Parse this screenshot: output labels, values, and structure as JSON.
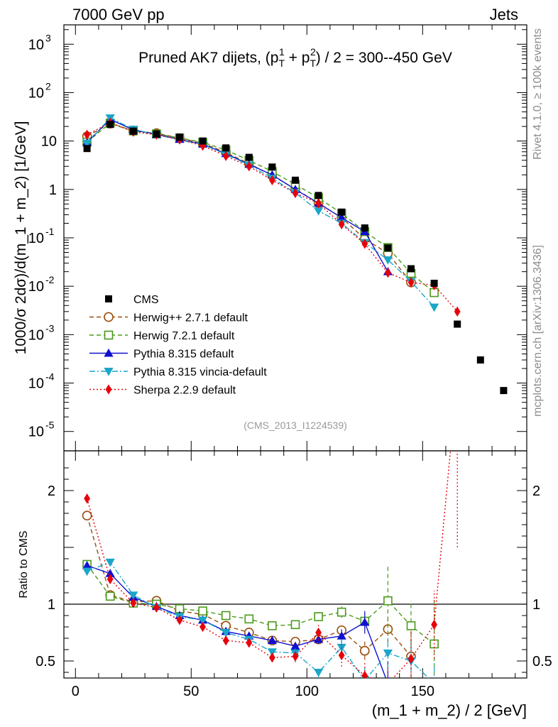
{
  "header": {
    "beam": "7000 GeV pp",
    "process": "Jets"
  },
  "side_labels": {
    "rivet": "Rivet 4.1.0, ≥ 100k events",
    "mcplots": "mcplots.cern.ch [arXiv:1306.3436]"
  },
  "chart_data": {
    "type": "scatter",
    "title": "Pruned AK7 dijets, (p_T^1 + p_T^2) / 2 = 300--450 GeV",
    "title_parts": {
      "prefix": "Pruned AK7 dijets, (p",
      "sub": "T",
      "sup1": "1",
      "sup2": "2",
      "mid": " + p",
      "suffix": ") / 2 = 300--450 GeV"
    },
    "analysis_id": "(CMS_2013_I1224539)",
    "xlabel": "(m_1 + m_2) / 2 [GeV]",
    "ylabel_top": "1000/σ   2dσ)/d(m_1 + m_2) [1/GeV]",
    "ylabel_ratio": "Ratio to CMS",
    "xlim": [
      -5,
      195
    ],
    "ylim_top_log10": [
      -5.4,
      3.4
    ],
    "ylim_ratio": [
      0.35,
      2.35
    ],
    "x_ticks": [
      0,
      50,
      100,
      150
    ],
    "y_ticks_top": [
      {
        "base": "10",
        "exp": "-5"
      },
      {
        "base": "10",
        "exp": "-4"
      },
      {
        "base": "10",
        "exp": "-3"
      },
      {
        "base": "10",
        "exp": "-2"
      },
      {
        "base": "10",
        "exp": "-1"
      },
      {
        "base": "1",
        "exp": ""
      },
      {
        "base": "10",
        "exp": ""
      },
      {
        "base": "10",
        "exp": "2"
      },
      {
        "base": "10",
        "exp": "3"
      }
    ],
    "y_ticks_ratio": [
      "0.5",
      "1",
      "2"
    ],
    "x": [
      5,
      15,
      25,
      35,
      45,
      55,
      65,
      75,
      85,
      95,
      105,
      115,
      125,
      135,
      145,
      155,
      165,
      175,
      185
    ],
    "data": {
      "name": "CMS",
      "values": [
        7.0,
        22.0,
        16.0,
        14.0,
        12.0,
        10.0,
        7.2,
        4.6,
        2.9,
        1.55,
        0.75,
        0.34,
        0.16,
        0.062,
        0.023,
        0.0115,
        0.00165,
        0.0003,
        7e-05
      ]
    },
    "series": [
      {
        "name": "Herwig++ 2.7.1 default",
        "color": "#9a4d0e",
        "marker": "circle-open",
        "dash": "6,4",
        "values": [
          12.5,
          23.0,
          16.2,
          14.5,
          11.5,
          9.0,
          5.8,
          3.4,
          1.95,
          1.02,
          0.52,
          0.26,
          0.095,
          0.048,
          0.012
        ],
        "ratio": [
          1.78,
          1.08,
          1.02,
          1.03,
          0.94,
          0.91,
          0.81,
          0.75,
          0.68,
          0.67,
          0.69,
          0.77,
          0.59,
          0.78,
          0.54
        ],
        "ratio_err": [
          0.04,
          0.02,
          0.02,
          0.02,
          0.02,
          0.02,
          0.02,
          0.02,
          0.03,
          0.03,
          0.04,
          0.06,
          0.08,
          0.12,
          0.25
        ]
      },
      {
        "name": "Herwig 7.2.1 default",
        "color": "#4a9a1a",
        "marker": "square-open",
        "dash": "6,4",
        "values": [
          9.5,
          23.5,
          16.2,
          14.0,
          11.6,
          9.4,
          6.5,
          4.0,
          2.35,
          1.27,
          0.67,
          0.32,
          0.135,
          0.063,
          0.0185,
          0.0074
        ],
        "ratio": [
          1.35,
          1.07,
          1.01,
          1.0,
          0.96,
          0.94,
          0.9,
          0.87,
          0.81,
          0.82,
          0.89,
          0.93,
          0.85,
          1.03,
          0.81,
          0.65
        ],
        "ratio_err": [
          0.03,
          0.02,
          0.02,
          0.02,
          0.02,
          0.02,
          0.02,
          0.02,
          0.03,
          0.03,
          0.04,
          0.05,
          0.07,
          0.3,
          0.22,
          0.4
        ]
      },
      {
        "name": "Pythia 8.315 default",
        "color": "#1010d0",
        "marker": "triangle-up",
        "dash": "",
        "values": [
          9.4,
          28.0,
          17.0,
          13.7,
          10.8,
          8.6,
          5.5,
          3.3,
          2.0,
          1.0,
          0.52,
          0.26,
          0.135,
          0.02
        ],
        "ratio": [
          1.34,
          1.27,
          1.06,
          0.98,
          0.9,
          0.86,
          0.76,
          0.72,
          0.68,
          0.63,
          0.69,
          0.72,
          0.84,
          0.3
        ],
        "ratio_err": [
          0.03,
          0.02,
          0.02,
          0.02,
          0.02,
          0.02,
          0.02,
          0.02,
          0.03,
          0.03,
          0.04,
          0.06,
          0.1,
          0.2
        ]
      },
      {
        "name": "Pythia 8.315 vincia-default",
        "color": "#1aa6c8",
        "marker": "triangle-down",
        "dash": "8,3,2,3",
        "values": [
          9.0,
          30.0,
          17.5,
          13.5,
          10.5,
          8.5,
          5.3,
          3.2,
          1.7,
          0.85,
          0.36,
          0.2,
          0.08,
          0.035,
          0.0125,
          0.0037
        ],
        "ratio": [
          1.29,
          1.37,
          1.08,
          0.97,
          0.89,
          0.86,
          0.75,
          0.69,
          0.58,
          0.57,
          0.4,
          0.62,
          0.33,
          0.57,
          0.5,
          0.3
        ],
        "ratio_err": [
          0.03,
          0.02,
          0.02,
          0.02,
          0.02,
          0.02,
          0.02,
          0.02,
          0.03,
          0.04,
          0.05,
          0.07,
          0.12,
          0.15,
          0.2,
          0.2
        ]
      },
      {
        "name": "Sherpa 2.2.9 default",
        "color": "#e8000b",
        "marker": "diamond",
        "dash": "2,3",
        "values": [
          13.5,
          24.0,
          15.5,
          13.5,
          10.8,
          8.0,
          4.9,
          3.0,
          1.55,
          0.84,
          0.52,
          0.19,
          0.075,
          0.019,
          0.012,
          0.0105,
          0.003
        ],
        "ratio": [
          1.93,
          1.22,
          1.01,
          0.97,
          0.86,
          0.8,
          0.68,
          0.66,
          0.53,
          0.54,
          0.75,
          0.55,
          0.37,
          0.3,
          0.52,
          0.82,
          3.0
        ],
        "ratio_err": [
          0.04,
          0.02,
          0.02,
          0.02,
          0.02,
          0.02,
          0.02,
          0.02,
          0.04,
          0.05,
          0.07,
          0.1,
          0.12,
          0.15,
          0.25,
          0.3,
          1.5
        ]
      }
    ]
  }
}
